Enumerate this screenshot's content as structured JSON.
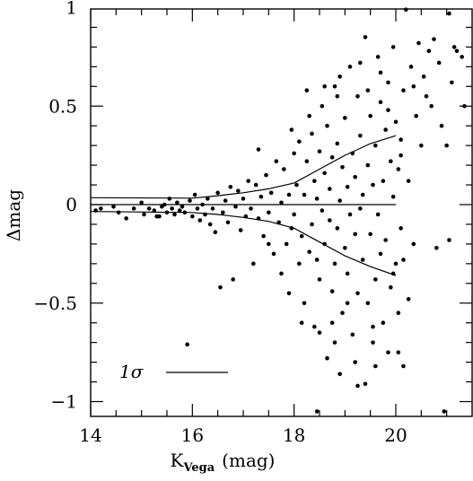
{
  "chart_data": {
    "type": "scatter",
    "title": "",
    "xlabel": "K",
    "xlabel_sub": "Vega",
    "xlabel_unit": "(mag)",
    "ylabel": "Δmag",
    "xlim": [
      14,
      21.4
    ],
    "ylim": [
      -1.07,
      1.0
    ],
    "x_ticks": [
      14,
      16,
      18,
      20
    ],
    "y_ticks": [
      1,
      0.5,
      0,
      -0.5,
      -1
    ],
    "y_tick_labels": [
      "1",
      "0.5",
      "0",
      "−0.5",
      "−1"
    ],
    "legend": {
      "label": "1σ",
      "placement": "bottom-left"
    },
    "sigma_curves": {
      "x": [
        14.0,
        16.0,
        16.5,
        17.0,
        17.5,
        18.0,
        18.5,
        19.0,
        19.5,
        20.0
      ],
      "upper": [
        0.035,
        0.033,
        0.045,
        0.06,
        0.08,
        0.11,
        0.18,
        0.25,
        0.31,
        0.35
      ],
      "lower": [
        -0.035,
        -0.04,
        -0.05,
        -0.065,
        -0.085,
        -0.12,
        -0.19,
        -0.26,
        -0.315,
        -0.36
      ],
      "center": [
        0,
        0,
        0,
        0,
        0,
        0,
        0,
        0,
        0,
        0
      ]
    },
    "points": [
      [
        14.1,
        -0.03
      ],
      [
        14.2,
        -0.02
      ],
      [
        14.45,
        -0.01
      ],
      [
        14.55,
        -0.04
      ],
      [
        14.7,
        -0.07
      ],
      [
        14.85,
        -0.02
      ],
      [
        15.0,
        0.01
      ],
      [
        15.05,
        -0.05
      ],
      [
        15.15,
        -0.02
      ],
      [
        15.25,
        -0.03
      ],
      [
        15.3,
        -0.06
      ],
      [
        15.35,
        -0.06
      ],
      [
        15.4,
        -0.01
      ],
      [
        15.45,
        0.0
      ],
      [
        15.5,
        -0.04
      ],
      [
        15.55,
        0.03
      ],
      [
        15.6,
        -0.02
      ],
      [
        15.65,
        -0.05
      ],
      [
        15.7,
        0.01
      ],
      [
        15.75,
        -0.03
      ],
      [
        15.8,
        -0.01
      ],
      [
        15.85,
        -0.04
      ],
      [
        15.9,
        -0.71
      ],
      [
        15.95,
        0.02
      ],
      [
        16.0,
        -0.06
      ],
      [
        16.05,
        0.05
      ],
      [
        16.1,
        -0.02
      ],
      [
        16.15,
        -0.08
      ],
      [
        16.2,
        0.0
      ],
      [
        16.25,
        -0.05
      ],
      [
        16.3,
        0.03
      ],
      [
        16.35,
        -0.1
      ],
      [
        16.4,
        -0.02
      ],
      [
        16.45,
        -0.14
      ],
      [
        16.5,
        0.06
      ],
      [
        16.55,
        -0.42
      ],
      [
        16.6,
        -0.04
      ],
      [
        16.65,
        0.02
      ],
      [
        16.7,
        -0.09
      ],
      [
        16.75,
        0.09
      ],
      [
        16.8,
        -0.38
      ],
      [
        16.85,
        -0.01
      ],
      [
        16.9,
        0.07
      ],
      [
        16.95,
        -0.13
      ],
      [
        17.0,
        0.03
      ],
      [
        17.05,
        -0.06
      ],
      [
        17.1,
        0.12
      ],
      [
        17.15,
        -0.02
      ],
      [
        17.2,
        -0.3
      ],
      [
        17.25,
        0.1
      ],
      [
        17.3,
        -0.07
      ],
      [
        17.35,
        0.04
      ],
      [
        17.4,
        -0.16
      ],
      [
        17.45,
        0.15
      ],
      [
        17.5,
        -0.04
      ],
      [
        17.55,
        0.06
      ],
      [
        17.6,
        -0.25
      ],
      [
        17.65,
        0.22
      ],
      [
        17.7,
        -0.09
      ],
      [
        17.75,
        0.01
      ],
      [
        17.8,
        0.18
      ],
      [
        17.85,
        -0.2
      ],
      [
        17.9,
        0.05
      ],
      [
        17.95,
        -0.12
      ],
      [
        18.0,
        0.26
      ],
      [
        18.0,
        -0.05
      ],
      [
        18.05,
        0.1
      ],
      [
        18.1,
        -0.3
      ],
      [
        18.1,
        0.32
      ],
      [
        18.15,
        -0.16
      ],
      [
        18.2,
        0.05
      ],
      [
        18.2,
        -0.5
      ],
      [
        18.25,
        0.22
      ],
      [
        18.3,
        -0.24
      ],
      [
        18.35,
        0.36
      ],
      [
        18.35,
        -0.1
      ],
      [
        18.4,
        0.12
      ],
      [
        18.4,
        -0.62
      ],
      [
        18.45,
        0.03
      ],
      [
        18.45,
        -1.05
      ],
      [
        18.5,
        0.27
      ],
      [
        18.5,
        -0.38
      ],
      [
        18.55,
        -0.03
      ],
      [
        18.55,
        0.5
      ],
      [
        18.6,
        -0.2
      ],
      [
        18.6,
        0.16
      ],
      [
        18.65,
        -0.78
      ],
      [
        18.65,
        0.4
      ],
      [
        18.7,
        -0.08
      ],
      [
        18.7,
        0.08
      ],
      [
        18.75,
        -0.44
      ],
      [
        18.75,
        0.24
      ],
      [
        18.8,
        0.6
      ],
      [
        18.8,
        -0.3
      ],
      [
        18.85,
        -0.12
      ],
      [
        18.85,
        0.31
      ],
      [
        18.9,
        0.02
      ],
      [
        18.9,
        -0.86
      ],
      [
        18.95,
        0.19
      ],
      [
        18.95,
        -0.55
      ],
      [
        19.0,
        0.44
      ],
      [
        19.0,
        -0.22
      ],
      [
        19.05,
        0.09
      ],
      [
        19.05,
        -0.35
      ],
      [
        19.1,
        0.7
      ],
      [
        19.1,
        -0.05
      ],
      [
        19.15,
        -0.66
      ],
      [
        19.15,
        0.26
      ],
      [
        19.2,
        -0.15
      ],
      [
        19.2,
        0.14
      ],
      [
        19.25,
        0.55
      ],
      [
        19.25,
        -0.45
      ],
      [
        19.3,
        -0.02
      ],
      [
        19.3,
        0.35
      ],
      [
        19.35,
        -0.28
      ],
      [
        19.35,
        0.05
      ],
      [
        19.4,
        -0.91
      ],
      [
        19.4,
        0.85
      ],
      [
        19.45,
        -0.5
      ],
      [
        19.45,
        0.2
      ],
      [
        19.5,
        0.45
      ],
      [
        19.5,
        -0.15
      ],
      [
        19.55,
        -0.7
      ],
      [
        19.55,
        0.1
      ],
      [
        19.6,
        0.3
      ],
      [
        19.6,
        -0.38
      ],
      [
        19.65,
        0.75
      ],
      [
        19.65,
        -0.05
      ],
      [
        19.7,
        -0.25
      ],
      [
        19.7,
        0.52
      ],
      [
        19.75,
        0.12
      ],
      [
        19.75,
        -0.6
      ],
      [
        19.8,
        0.38
      ],
      [
        19.8,
        -0.18
      ],
      [
        19.85,
        -0.75
      ],
      [
        19.85,
        0.62
      ],
      [
        19.9,
        0.22
      ],
      [
        19.9,
        -0.42
      ],
      [
        19.95,
        0.04
      ],
      [
        19.95,
        0.8
      ],
      [
        20.0,
        -0.3
      ],
      [
        20.0,
        0.42
      ],
      [
        20.05,
        -0.55
      ],
      [
        20.05,
        0.18
      ],
      [
        20.1,
        0.33
      ],
      [
        20.1,
        -0.12
      ],
      [
        20.15,
        0.58
      ],
      [
        20.15,
        -0.28
      ],
      [
        20.2,
        0.99
      ],
      [
        20.25,
        0.12
      ],
      [
        20.25,
        -0.48
      ],
      [
        20.3,
        0.7
      ],
      [
        20.35,
        -0.2
      ],
      [
        20.4,
        0.45
      ],
      [
        20.45,
        0.82
      ],
      [
        20.5,
        0.3
      ],
      [
        20.55,
        0.65
      ],
      [
        20.6,
        0.55
      ],
      [
        20.65,
        0.78
      ],
      [
        20.7,
        0.5
      ],
      [
        20.75,
        0.84
      ],
      [
        20.8,
        -0.22
      ],
      [
        20.85,
        0.72
      ],
      [
        20.9,
        0.4
      ],
      [
        20.95,
        -1.05
      ],
      [
        20.97,
        1.0
      ],
      [
        21.0,
        0.3
      ],
      [
        21.05,
        0.97
      ],
      [
        21.1,
        0.62
      ],
      [
        21.15,
        0.8
      ],
      [
        21.2,
        0.78
      ],
      [
        21.3,
        0.75
      ],
      [
        21.35,
        0.5
      ],
      [
        21.05,
        -0.18
      ],
      [
        18.3,
        0.45
      ],
      [
        18.6,
        0.6
      ],
      [
        18.9,
        0.65
      ],
      [
        19.3,
        0.72
      ],
      [
        19.7,
        0.67
      ],
      [
        18.5,
        -0.65
      ],
      [
        18.8,
        -0.7
      ],
      [
        19.2,
        -0.8
      ],
      [
        19.6,
        -0.82
      ],
      [
        20.05,
        -0.75
      ],
      [
        17.9,
        -0.45
      ],
      [
        18.15,
        -0.6
      ],
      [
        18.45,
        -0.28
      ],
      [
        18.75,
        -0.6
      ],
      [
        19.05,
        -0.5
      ],
      [
        19.25,
        -0.92
      ],
      [
        19.55,
        -0.62
      ],
      [
        19.95,
        -0.35
      ],
      [
        20.15,
        -0.82
      ],
      [
        17.75,
        -0.35
      ],
      [
        17.5,
        -0.2
      ],
      [
        17.3,
        0.28
      ],
      [
        17.95,
        0.38
      ],
      [
        18.25,
        0.58
      ],
      [
        18.85,
        0.55
      ],
      [
        19.45,
        0.58
      ],
      [
        19.85,
        0.48
      ],
      [
        20.35,
        0.6
      ],
      [
        20.1,
        0.25
      ]
    ]
  }
}
